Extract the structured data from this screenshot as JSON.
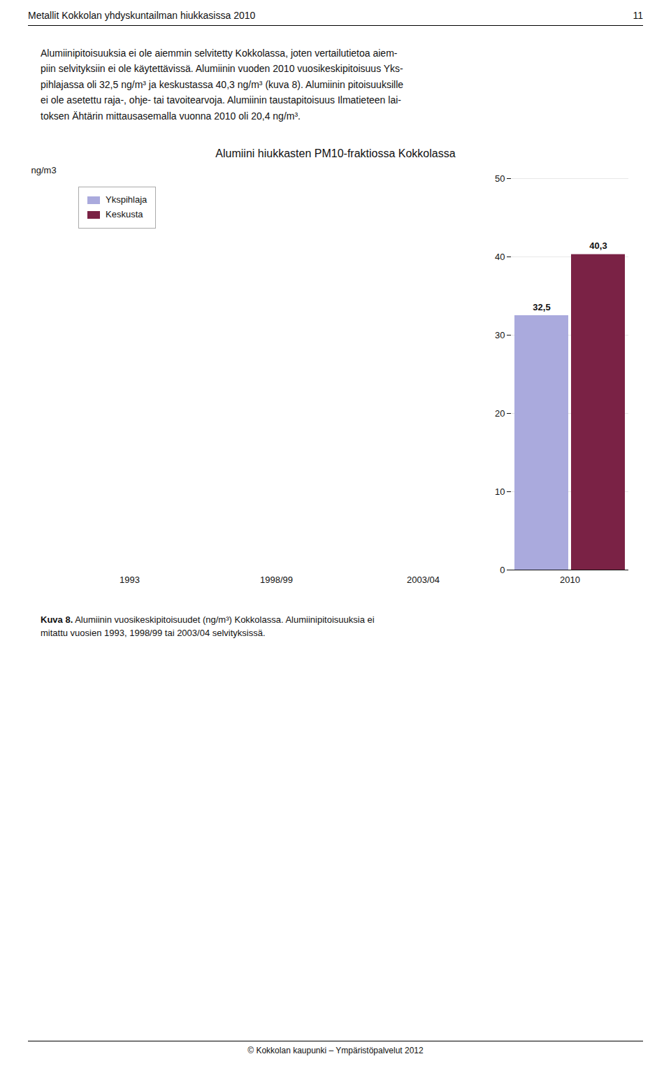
{
  "chart_data": {
    "type": "bar",
    "title": "Alumiini hiukkasten PM10-fraktiossa Kokkolassa",
    "ylabel": "ng/m3",
    "categories": [
      "1993",
      "1998/99",
      "2003/04",
      "2010"
    ],
    "series": [
      {
        "name": "Ykspihlaja",
        "color": "#aaaadd",
        "values": [
          null,
          null,
          null,
          32.5
        ],
        "value_labels": [
          null,
          null,
          null,
          "32,5"
        ]
      },
      {
        "name": "Keskusta",
        "color": "#7a2245",
        "values": [
          null,
          null,
          null,
          40.3
        ],
        "value_labels": [
          null,
          null,
          null,
          "40,3"
        ]
      }
    ],
    "ylim": [
      0,
      50
    ],
    "yticks": [
      0,
      10,
      20,
      30,
      40,
      50
    ],
    "grid": true,
    "legend": "upper left",
    "data_labels": true
  },
  "header_text": "Metallit Kokkolan yhdyskuntailman hiukkasissa 2010",
  "header_page": "11",
  "body_text": "Alumiinipitoisuuksia ei ole aiemmin selvitetty Kokkolassa, joten vertailutietoa aiem-\npiin selvityksiin ei ole käytettävissä. Alumiinin vuoden 2010 vuosikeskipitoisuus Yks-\npihlajassa oli 32,5 ng/m³ ja keskustassa 40,3 ng/m³ (kuva 8). Alumiinin pitoisuuksille\nei ole asetettu raja-, ohje- tai tavoitearvoja. Alumiinin taustapitoisuus Ilmatieteen lai-\ntoksen Ähtärin mittausasemalla vuonna 2010 oli 20,4 ng/m³.",
  "caption_bold": "Kuva 8.",
  "caption_text": " Alumiinin vuosikeskipitoisuudet (ng/m³) Kokkolassa. Alumiinipitoisuuksia ei\nmitattu vuosien 1993, 1998/99 tai 2003/04 selvityksissä.",
  "footer_text": "© Kokkolan kaupunki – Ympäristöpalvelut 2012"
}
